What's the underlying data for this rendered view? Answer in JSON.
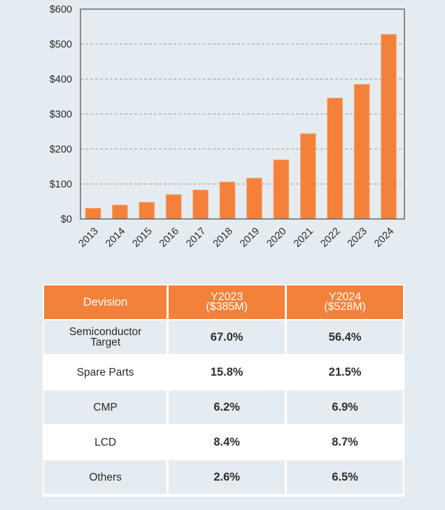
{
  "chart_data": {
    "type": "bar",
    "title": "",
    "xlabel": "",
    "ylabel": "",
    "categories": [
      "2013",
      "2014",
      "2015",
      "2016",
      "2017",
      "2018",
      "2019",
      "2020",
      "2021",
      "2022",
      "2023",
      "2024"
    ],
    "values": [
      31,
      40,
      48,
      70,
      83,
      106,
      117,
      169,
      244,
      346,
      385,
      528
    ],
    "ylim": [
      0,
      600
    ],
    "yticks": [
      0,
      100,
      200,
      300,
      400,
      500,
      600
    ],
    "ytick_labels": [
      "$0",
      "$100",
      "$200",
      "$300",
      "$400",
      "$500",
      "$600"
    ],
    "grid": "horizontal dashed",
    "bar_color": "#f4813a",
    "legend": "none"
  },
  "table": {
    "header": {
      "division": "Devision",
      "y2023_line1": "Y2023",
      "y2023_line2": "($385M)",
      "y2024_line1": "Y2024",
      "y2024_line2": "($528M)"
    },
    "rows": [
      {
        "label_line1": "Semiconductor",
        "label_line2": "Target",
        "y2023": "67.0%",
        "y2024": "56.4%"
      },
      {
        "label_line1": "Spare Parts",
        "label_line2": "",
        "y2023": "15.8%",
        "y2024": "21.5%"
      },
      {
        "label_line1": "CMP",
        "label_line2": "",
        "y2023": "6.2%",
        "y2024": "6.9%"
      },
      {
        "label_line1": "LCD",
        "label_line2": "",
        "y2023": "8.4%",
        "y2024": "8.7%"
      },
      {
        "label_line1": "Others",
        "label_line2": "",
        "y2023": "2.6%",
        "y2024": "6.5%"
      }
    ]
  },
  "colors": {
    "accent": "#f4813a",
    "background": "#e4ecf1",
    "text": "#2a2a2a"
  }
}
